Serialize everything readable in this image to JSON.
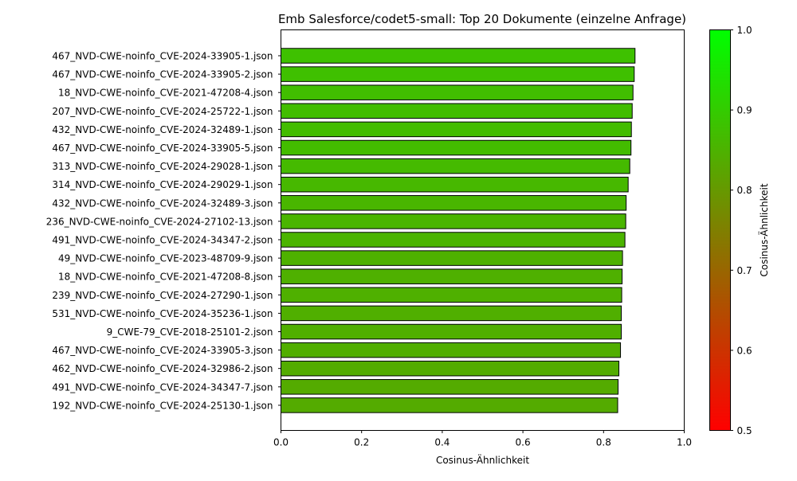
{
  "chart_data": {
    "type": "bar",
    "orientation": "horizontal",
    "title": "Emb Salesforce/codet5-small: Top 20 Dokumente (einzelne Anfrage)",
    "xlabel": "Cosinus-Ähnlichkeit",
    "ylabel": "",
    "xlim": [
      0.0,
      1.0
    ],
    "xticks": [
      "0.0",
      "0.2",
      "0.4",
      "0.6",
      "0.8",
      "1.0"
    ],
    "grid": false,
    "categories": [
      "467_NVD-CWE-noinfo_CVE-2024-33905-1.json",
      "467_NVD-CWE-noinfo_CVE-2024-33905-2.json",
      "18_NVD-CWE-noinfo_CVE-2021-47208-4.json",
      "207_NVD-CWE-noinfo_CVE-2024-25722-1.json",
      "432_NVD-CWE-noinfo_CVE-2024-32489-1.json",
      "467_NVD-CWE-noinfo_CVE-2024-33905-5.json",
      "313_NVD-CWE-noinfo_CVE-2024-29028-1.json",
      "314_NVD-CWE-noinfo_CVE-2024-29029-1.json",
      "432_NVD-CWE-noinfo_CVE-2024-32489-3.json",
      "236_NVD-CWE-noinfo_CVE-2024-27102-13.json",
      "491_NVD-CWE-noinfo_CVE-2024-34347-2.json",
      "49_NVD-CWE-noinfo_CVE-2023-48709-9.json",
      "18_NVD-CWE-noinfo_CVE-2021-47208-8.json",
      "239_NVD-CWE-noinfo_CVE-2024-27290-1.json",
      "531_NVD-CWE-noinfo_CVE-2024-35236-1.json",
      "9_CWE-79_CVE-2018-25101-2.json",
      "467_NVD-CWE-noinfo_CVE-2024-33905-3.json",
      "462_NVD-CWE-noinfo_CVE-2024-32986-2.json",
      "491_NVD-CWE-noinfo_CVE-2024-34347-7.json",
      "192_NVD-CWE-noinfo_CVE-2024-25130-1.json"
    ],
    "values": [
      0.878,
      0.876,
      0.873,
      0.871,
      0.869,
      0.868,
      0.865,
      0.861,
      0.856,
      0.855,
      0.853,
      0.847,
      0.846,
      0.845,
      0.844,
      0.844,
      0.842,
      0.838,
      0.836,
      0.835
    ],
    "colorbar": {
      "label": "Cosinus-Ähnlichkeit",
      "range": [
        0.5,
        1.0
      ],
      "ticks": [
        "0.5",
        "0.6",
        "0.7",
        "0.8",
        "0.9",
        "1.0"
      ],
      "color_low": "#ff0000",
      "color_high": "#00ff00"
    },
    "bar_edge_color": "#000000"
  }
}
